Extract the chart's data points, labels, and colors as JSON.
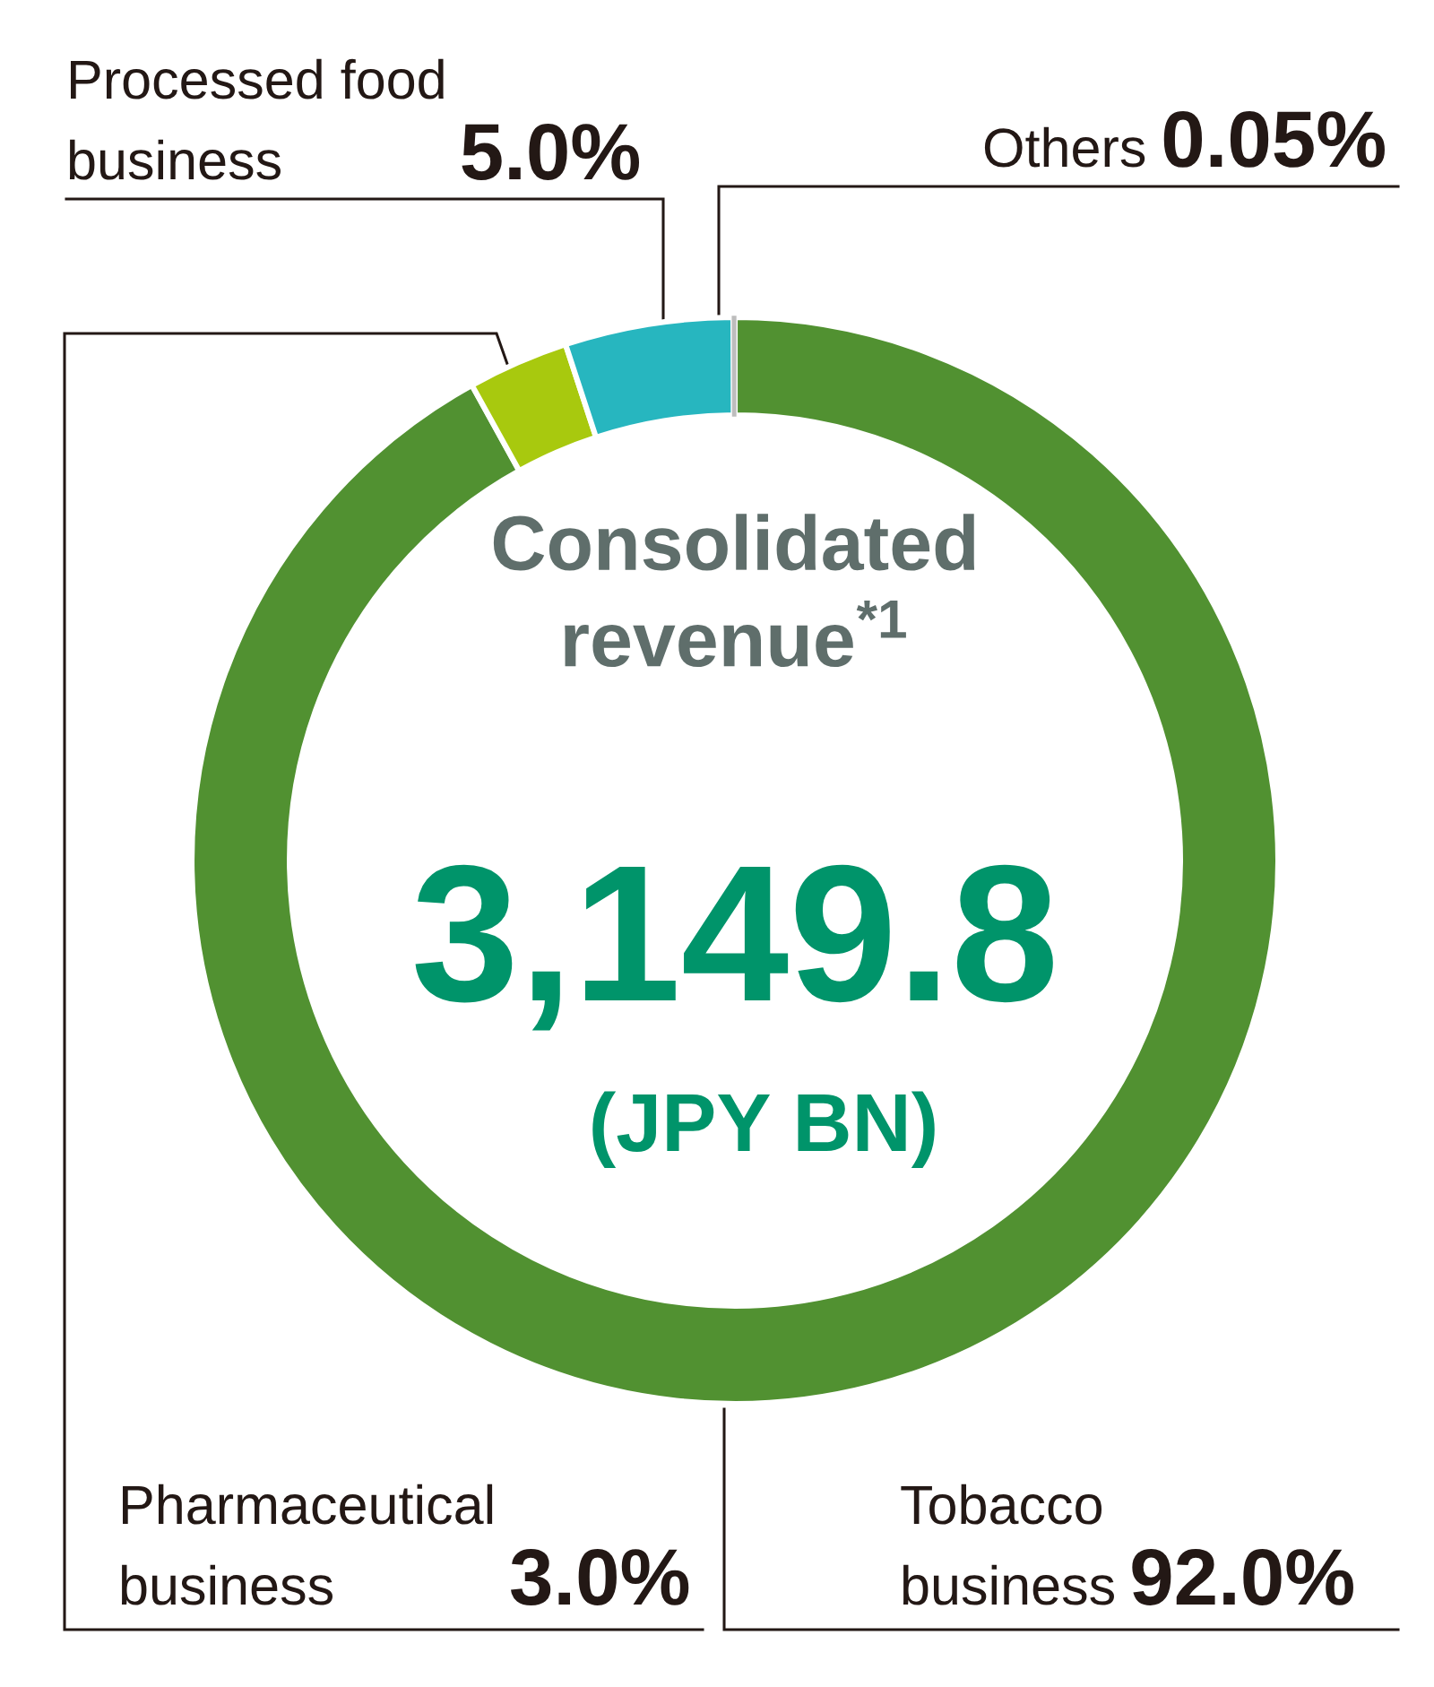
{
  "chart_data": {
    "type": "donut",
    "categories": [
      "Tobacco\nbusiness",
      "Pharmaceutical\nbusiness",
      "Processed food\nbusiness",
      "Others"
    ],
    "values": [
      92.0,
      3.0,
      5.0,
      0.05
    ],
    "colors": [
      "#519131",
      "#a8c90e",
      "#27b6bf",
      "#bdbdbd"
    ],
    "value_labels": [
      "92.0%",
      "3.0%",
      "5.0%",
      "0.05%"
    ],
    "annotations": [
      "Consolidated\nrevenue$^{*1}$",
      "3,149.8",
      "(JPY BN)"
    ]
  }
}
